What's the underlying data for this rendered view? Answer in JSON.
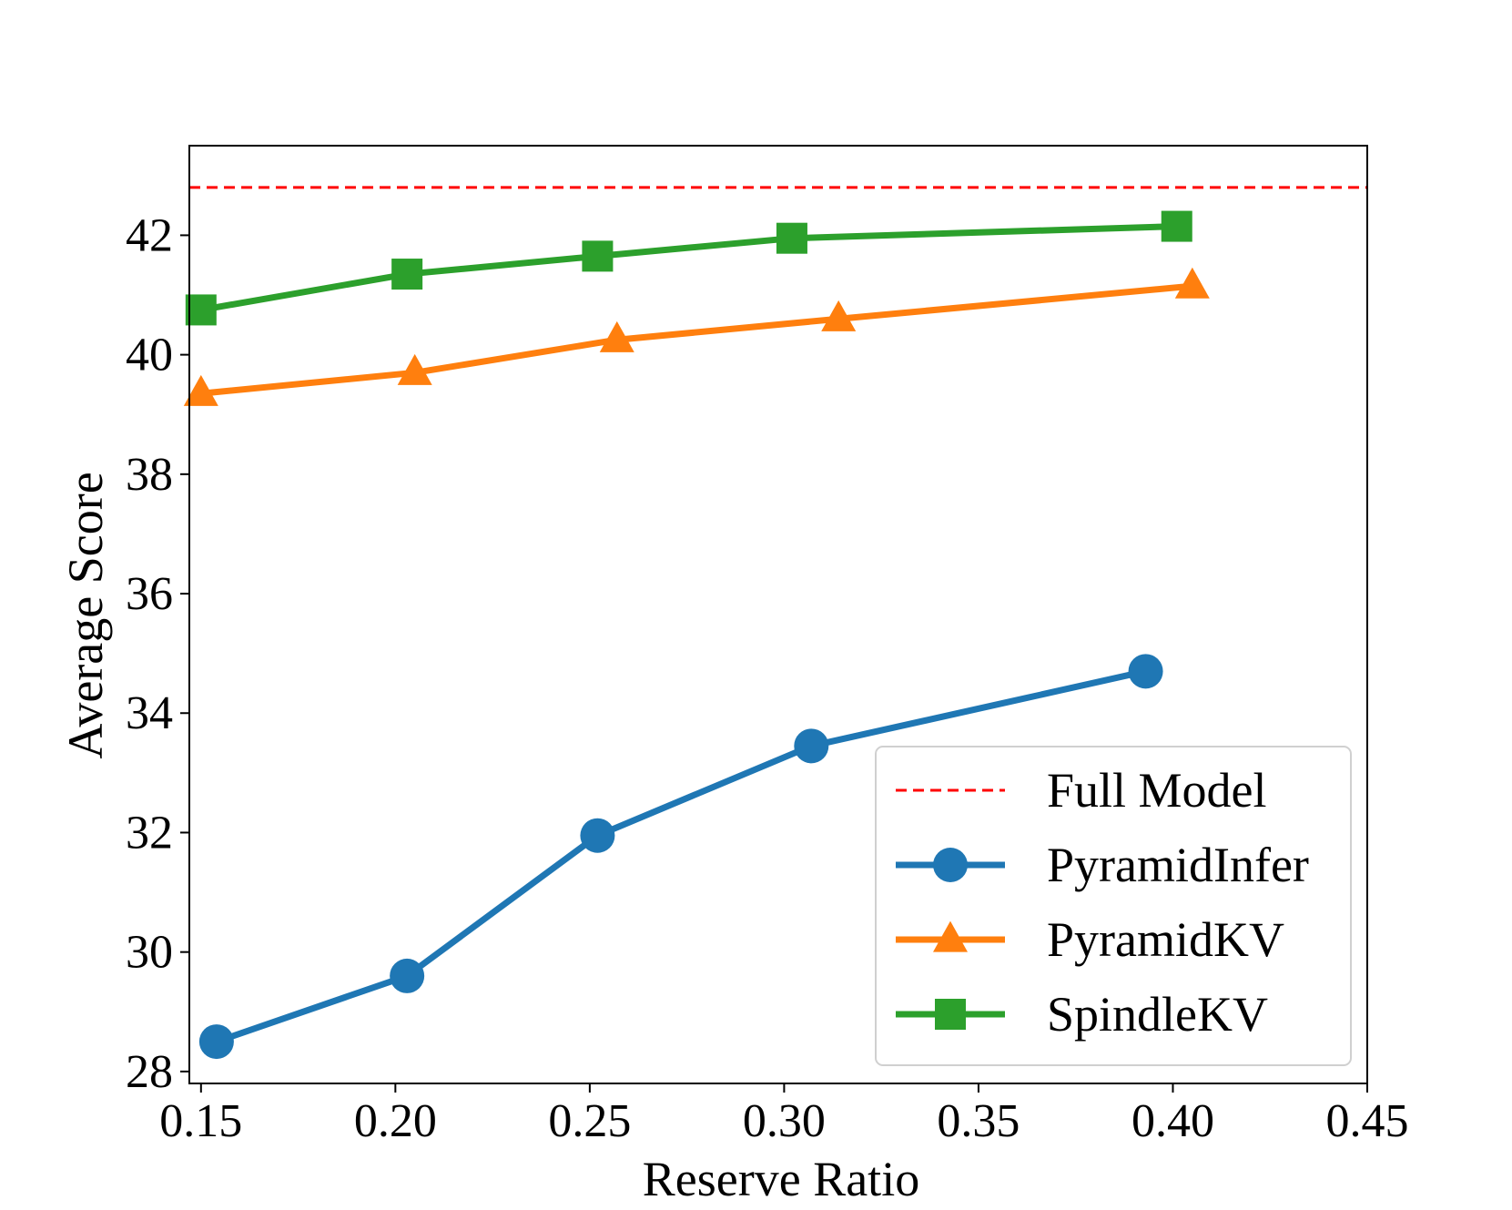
{
  "chart_data": {
    "type": "line",
    "title": "",
    "xlabel": "Reserve Ratio",
    "ylabel": "Average Score",
    "xlim": [
      0.147,
      0.45
    ],
    "ylim": [
      27.8,
      43.5
    ],
    "xticks": [
      "0.15",
      "0.20",
      "0.25",
      "0.30",
      "0.35",
      "0.40",
      "0.45"
    ],
    "xtick_values": [
      0.15,
      0.2,
      0.25,
      0.3,
      0.35,
      0.4,
      0.45
    ],
    "yticks": [
      "28",
      "30",
      "32",
      "34",
      "36",
      "38",
      "40",
      "42"
    ],
    "ytick_values": [
      28,
      30,
      32,
      34,
      36,
      38,
      40,
      42
    ],
    "grid": false,
    "legend_position": "lower-right",
    "reference_line": {
      "name": "Full Model",
      "y": 42.8,
      "color": "#ff0000",
      "style": "dashed"
    },
    "series": [
      {
        "name": "PyramidInfer",
        "color": "#1f77b4",
        "marker": "circle",
        "x": [
          0.154,
          0.203,
          0.252,
          0.307,
          0.393
        ],
        "y": [
          28.5,
          29.6,
          31.95,
          33.45,
          34.7
        ]
      },
      {
        "name": "PyramidKV",
        "color": "#ff7f0e",
        "marker": "triangle",
        "x": [
          0.15,
          0.205,
          0.257,
          0.314,
          0.405
        ],
        "y": [
          39.35,
          39.7,
          40.25,
          40.6,
          41.15
        ]
      },
      {
        "name": "SpindleKV",
        "color": "#2ca02c",
        "marker": "square",
        "x": [
          0.15,
          0.203,
          0.252,
          0.302,
          0.401
        ],
        "y": [
          40.75,
          41.35,
          41.65,
          41.95,
          42.15
        ]
      }
    ]
  }
}
